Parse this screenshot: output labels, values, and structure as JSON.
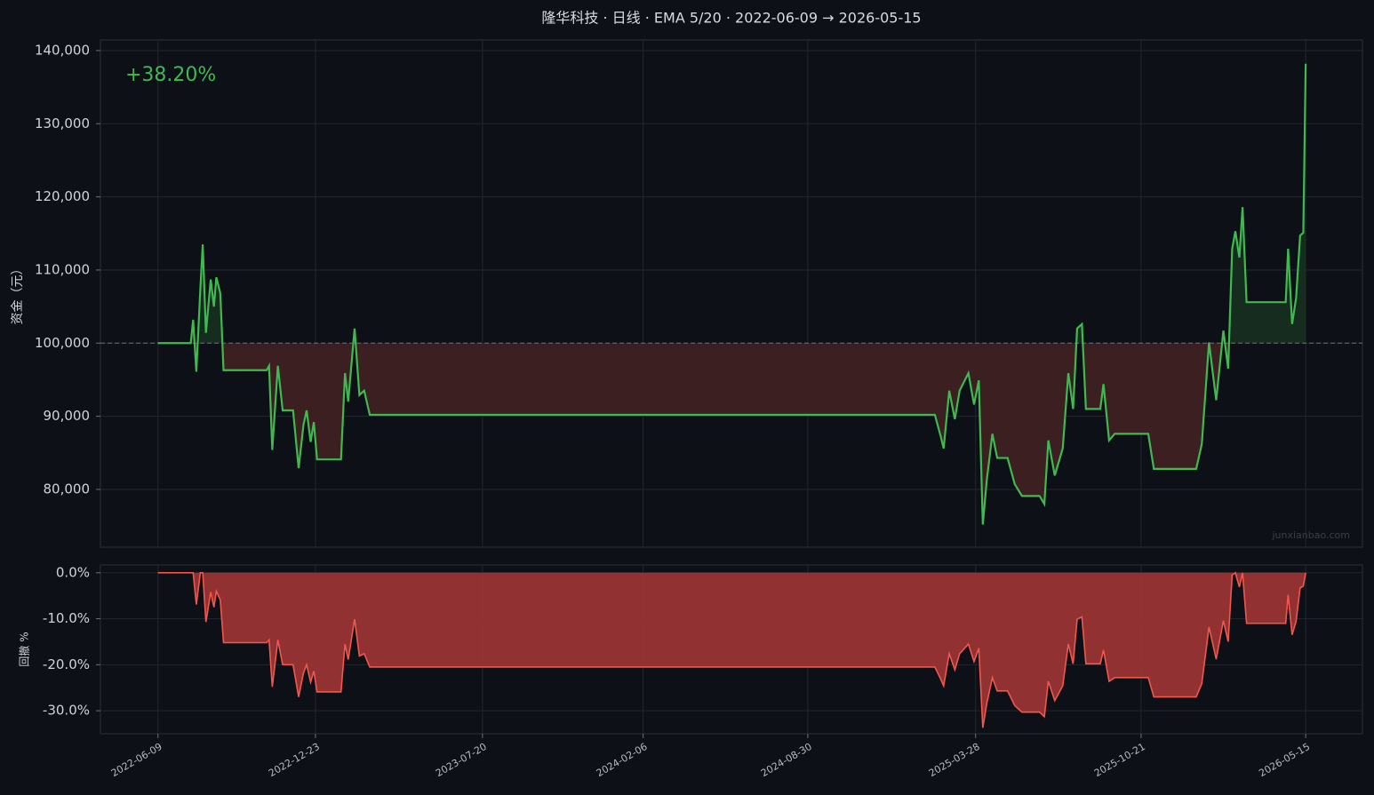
{
  "chart_data": [
    {
      "type": "line",
      "title": "隆华科技 · 日线 · EMA 5/20 · 2022-06-09 → 2026-05-15",
      "ylabel": "资金（元）",
      "annotation": "+38.20%",
      "watermark": "junxianbao.com",
      "color": "#3fb950",
      "baseline": 100000,
      "grid": true,
      "xlim": [
        "2022-03-29",
        "2026-07-25"
      ],
      "xticks": [
        "2022-06-09",
        "2022-12-23",
        "2023-07-20",
        "2024-02-06",
        "2024-08-30",
        "2025-03-28",
        "2025-10-21",
        "2026-05-15"
      ],
      "ylim": [
        72100,
        141450
      ],
      "yticks": [
        {
          "value": 80000,
          "label": "80,000"
        },
        {
          "value": 90000,
          "label": "90,000"
        },
        {
          "value": 100000,
          "label": "100,000"
        },
        {
          "value": 110000,
          "label": "110,000"
        },
        {
          "value": 120000,
          "label": "120,000"
        },
        {
          "value": 130000,
          "label": "130,000"
        },
        {
          "value": 140000,
          "label": "140,000"
        }
      ],
      "x": [
        "2022-06-09",
        "2022-07-20",
        "2022-07-23",
        "2022-07-27",
        "2022-08-01",
        "2022-08-04",
        "2022-08-08",
        "2022-08-14",
        "2022-08-18",
        "2022-08-21",
        "2022-08-26",
        "2022-08-30",
        "2022-10-23",
        "2022-10-26",
        "2022-10-30",
        "2022-11-06",
        "2022-11-12",
        "2022-11-25",
        "2022-12-02",
        "2022-12-08",
        "2022-12-12",
        "2022-12-17",
        "2022-12-21",
        "2022-12-25",
        "2023-01-24",
        "2023-01-29",
        "2023-02-02",
        "2023-02-10",
        "2023-02-16",
        "2023-02-22",
        "2023-03-01",
        "2025-02-05",
        "2025-02-12",
        "2025-02-16",
        "2025-02-23",
        "2025-03-02",
        "2025-03-08",
        "2025-03-19",
        "2025-03-26",
        "2025-04-01",
        "2025-04-06",
        "2025-04-11",
        "2025-04-18",
        "2025-04-24",
        "2025-05-07",
        "2025-05-16",
        "2025-05-25",
        "2025-06-16",
        "2025-06-22",
        "2025-06-27",
        "2025-07-05",
        "2025-07-15",
        "2025-07-22",
        "2025-07-28",
        "2025-08-02",
        "2025-08-08",
        "2025-08-13",
        "2025-08-31",
        "2025-09-04",
        "2025-09-11",
        "2025-09-18",
        "2025-10-30",
        "2025-11-06",
        "2025-12-29",
        "2026-01-05",
        "2026-01-14",
        "2026-01-23",
        "2026-02-01",
        "2026-02-07",
        "2026-02-12",
        "2026-02-16",
        "2026-02-21",
        "2026-02-25",
        "2026-03-02",
        "2026-04-20",
        "2026-04-23",
        "2026-04-28",
        "2026-05-03",
        "2026-05-08",
        "2026-05-12",
        "2026-05-15"
      ],
      "values": [
        100000,
        100000,
        103200,
        96100,
        107400,
        113500,
        101400,
        108700,
        105000,
        109000,
        106800,
        96300,
        96300,
        96900,
        85400,
        96900,
        90800,
        90800,
        82900,
        88800,
        90800,
        86500,
        89200,
        84100,
        84100,
        95900,
        92000,
        102000,
        92900,
        93500,
        90200,
        90200,
        87400,
        85600,
        93500,
        89600,
        93500,
        95900,
        91600,
        94900,
        75200,
        81300,
        87600,
        84300,
        84300,
        80700,
        79100,
        79100,
        78000,
        86700,
        81900,
        85600,
        95900,
        91000,
        102000,
        102600,
        91000,
        91000,
        94400,
        86700,
        87600,
        87600,
        82800,
        82800,
        86200,
        100100,
        92200,
        101700,
        96500,
        112900,
        115300,
        111700,
        118600,
        105600,
        105600,
        112900,
        102600,
        106200,
        114700,
        115100,
        138200
      ]
    },
    {
      "type": "area",
      "ylabel": "回撤 %",
      "color": "#f0584e",
      "grid": true,
      "xlim": [
        "2022-03-29",
        "2026-07-25"
      ],
      "xticks": [
        "2022-06-09",
        "2022-12-23",
        "2023-07-20",
        "2024-02-06",
        "2024-08-30",
        "2025-03-28",
        "2025-10-21",
        "2026-05-15"
      ],
      "ylim": [
        -35,
        1.7
      ],
      "yticks": [
        {
          "value": -30,
          "label": "-30.0%"
        },
        {
          "value": -20,
          "label": "-20.0%"
        },
        {
          "value": -10,
          "label": "-10.0%"
        },
        {
          "value": 0,
          "label": "0.0%"
        }
      ],
      "x": [
        "2022-06-09",
        "2022-07-20",
        "2022-07-23",
        "2022-07-27",
        "2022-08-01",
        "2022-08-04",
        "2022-08-08",
        "2022-08-14",
        "2022-08-18",
        "2022-08-21",
        "2022-08-26",
        "2022-08-30",
        "2022-10-23",
        "2022-10-26",
        "2022-10-30",
        "2022-11-06",
        "2022-11-12",
        "2022-11-25",
        "2022-12-02",
        "2022-12-08",
        "2022-12-12",
        "2022-12-17",
        "2022-12-21",
        "2022-12-25",
        "2023-01-24",
        "2023-01-29",
        "2023-02-02",
        "2023-02-10",
        "2023-02-16",
        "2023-02-22",
        "2023-03-01",
        "2025-02-05",
        "2025-02-12",
        "2025-02-16",
        "2025-02-23",
        "2025-03-02",
        "2025-03-08",
        "2025-03-19",
        "2025-03-26",
        "2025-04-01",
        "2025-04-06",
        "2025-04-11",
        "2025-04-18",
        "2025-04-24",
        "2025-05-07",
        "2025-05-16",
        "2025-05-25",
        "2025-06-16",
        "2025-06-22",
        "2025-06-27",
        "2025-07-05",
        "2025-07-15",
        "2025-07-22",
        "2025-07-28",
        "2025-08-02",
        "2025-08-08",
        "2025-08-13",
        "2025-08-31",
        "2025-09-04",
        "2025-09-11",
        "2025-09-18",
        "2025-10-30",
        "2025-11-06",
        "2025-12-29",
        "2026-01-05",
        "2026-01-14",
        "2026-01-23",
        "2026-02-01",
        "2026-02-07",
        "2026-02-12",
        "2026-02-16",
        "2026-02-21",
        "2026-02-25",
        "2026-03-02",
        "2026-04-20",
        "2026-04-23",
        "2026-04-28",
        "2026-05-03",
        "2026-05-08",
        "2026-05-12",
        "2026-05-15"
      ],
      "values": [
        0,
        0,
        0,
        -6.9,
        0,
        0,
        -10.7,
        -4.2,
        -7.5,
        -4.0,
        -5.9,
        -15.2,
        -15.2,
        -14.6,
        -24.8,
        -14.6,
        -20.0,
        -20.0,
        -27.0,
        -21.8,
        -20.0,
        -23.8,
        -21.4,
        -25.9,
        -25.9,
        -15.5,
        -18.9,
        -10.1,
        -18.1,
        -17.6,
        -20.5,
        -20.5,
        -23.0,
        -24.6,
        -17.6,
        -21.1,
        -17.6,
        -15.5,
        -19.3,
        -16.4,
        -33.7,
        -28.4,
        -22.8,
        -25.7,
        -25.7,
        -28.9,
        -30.3,
        -30.3,
        -31.3,
        -23.6,
        -27.8,
        -24.6,
        -15.5,
        -19.8,
        -10.1,
        -9.6,
        -19.8,
        -19.8,
        -16.8,
        -23.6,
        -22.8,
        -22.8,
        -27.0,
        -27.0,
        -24.1,
        -11.8,
        -18.8,
        -10.4,
        -15.0,
        -0.5,
        0,
        -3.1,
        0,
        -11.0,
        -11.0,
        -4.8,
        -13.5,
        -10.5,
        -3.3,
        -2.9,
        0
      ]
    }
  ]
}
